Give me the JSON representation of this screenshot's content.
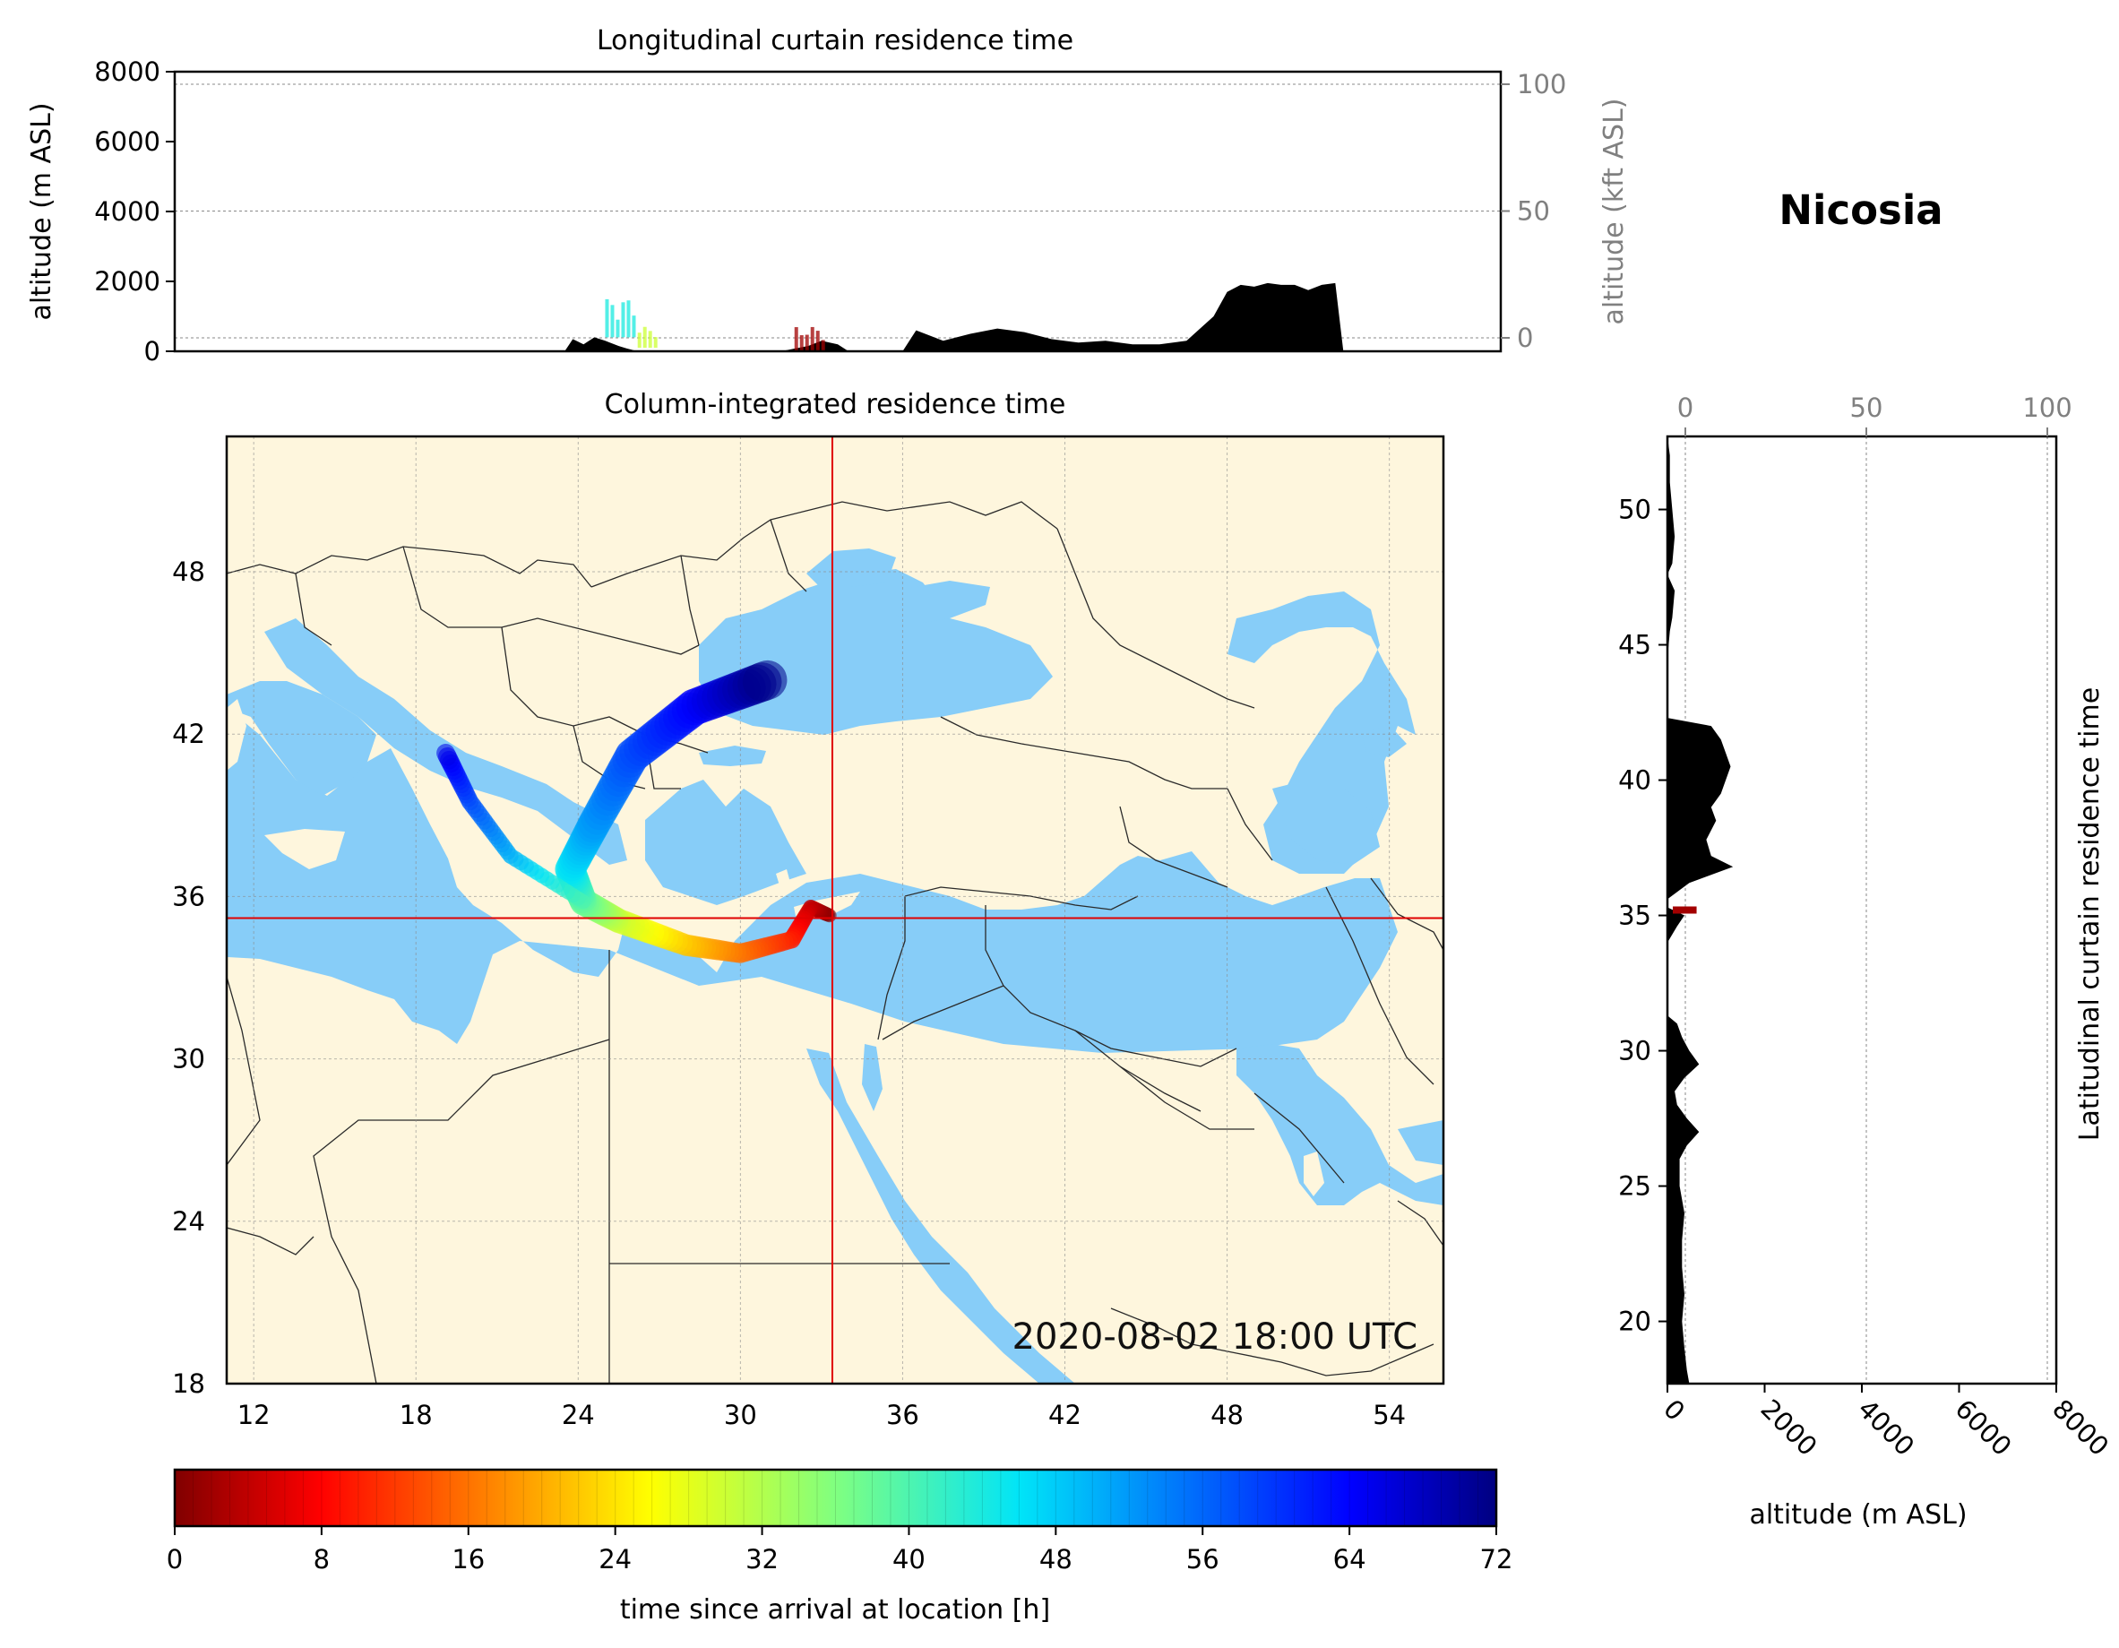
{
  "station": "Nicosia",
  "timestamp": "2020-08-02 18:00 UTC",
  "colors": {
    "land": "#fef6dd",
    "water": "#87cdf8",
    "crosshair": "#e00000",
    "terrain": "#000000"
  },
  "chart_data": [
    {
      "type": "area",
      "id": "longitudinal",
      "title": "Longitudinal curtain residence time",
      "ylabel": "altitude (m ASL)",
      "y2label": "altitude (kft ASL)",
      "ylim": [
        0,
        8000
      ],
      "y2lim": [
        0,
        100
      ],
      "yticks": [
        0,
        2000,
        4000,
        6000,
        8000
      ],
      "y2ticks": [
        0,
        50,
        100
      ],
      "xlim": [
        11,
        55.5
      ],
      "grid": true,
      "terrain_lon": [
        23.5,
        23.8,
        24.2,
        24.6,
        25.0,
        25.5,
        25.8,
        26.2,
        26.6,
        27.0,
        27.5,
        28.0,
        29.0,
        30.0,
        31.0,
        31.5,
        32.5,
        33.0,
        33.6,
        34.0,
        34.4,
        34.9,
        35.2,
        35.6,
        36.0,
        36.5,
        37.5,
        38.5,
        39.5,
        40.5,
        41.5,
        42.5,
        43.5,
        44.5,
        45.5,
        46.5,
        47.0,
        47.5,
        48.0,
        48.5,
        49.0,
        49.5,
        50.0,
        50.5,
        51.0,
        51.5,
        52.0,
        52.3
      ],
      "terrain_alt": [
        0,
        350,
        200,
        400,
        300,
        150,
        80,
        0,
        0,
        0,
        0,
        0,
        0,
        0,
        0,
        0,
        150,
        300,
        200,
        0,
        0,
        0,
        0,
        0,
        0,
        600,
        300,
        500,
        650,
        550,
        350,
        250,
        300,
        200,
        200,
        300,
        650,
        1000,
        1700,
        1900,
        1850,
        1950,
        1900,
        1900,
        1750,
        1900,
        1950,
        0
      ],
      "residence_patches": [
        {
          "lon": [
            25.0,
            26.0
          ],
          "alt": [
            400,
            1500
          ],
          "hours": 44
        },
        {
          "lon": [
            26.2,
            26.8
          ],
          "alt": [
            100,
            700
          ],
          "hours": 30
        },
        {
          "lon": [
            32.0,
            33.1
          ],
          "alt": [
            0,
            700
          ],
          "hours": 2
        }
      ]
    },
    {
      "type": "heatmap",
      "id": "column",
      "title": "Column-integrated residence time",
      "xticks": [
        12,
        18,
        24,
        30,
        36,
        42,
        48,
        54
      ],
      "yticks": [
        18,
        24,
        30,
        36,
        42,
        48
      ],
      "xlim": [
        11,
        56
      ],
      "ylim": [
        18,
        53
      ],
      "grid": true,
      "crosshair": {
        "lon": 33.4,
        "lat": 35.2
      },
      "trajectory": [
        {
          "lon": 33.3,
          "lat": 35.3,
          "hours": 0
        },
        {
          "lon": 32.6,
          "lat": 35.6,
          "hours": 4
        },
        {
          "lon": 31.9,
          "lat": 34.4,
          "hours": 10
        },
        {
          "lon": 30.0,
          "lat": 33.9,
          "hours": 16
        },
        {
          "lon": 28.0,
          "lat": 34.2,
          "hours": 22
        },
        {
          "lon": 25.5,
          "lat": 35.1,
          "hours": 30
        },
        {
          "lon": 24.2,
          "lat": 35.8,
          "hours": 38
        },
        {
          "lon": 23.7,
          "lat": 37.0,
          "hours": 46
        },
        {
          "lon": 24.6,
          "lat": 38.7,
          "hours": 52
        },
        {
          "lon": 26.0,
          "lat": 41.2,
          "hours": 58
        },
        {
          "lon": 28.3,
          "lat": 43.0,
          "hours": 64
        },
        {
          "lon": 31.0,
          "lat": 44.0,
          "hours": 72
        }
      ],
      "trajectory_branch": [
        {
          "lon": 24.2,
          "lat": 35.8,
          "hours": 40
        },
        {
          "lon": 21.5,
          "lat": 37.5,
          "hours": 50
        },
        {
          "lon": 20.0,
          "lat": 39.5,
          "hours": 58
        },
        {
          "lon": 19.1,
          "lat": 41.3,
          "hours": 66
        }
      ]
    },
    {
      "type": "area",
      "id": "latitudinal",
      "title": "Latitudinal curtain residence time",
      "xlabel": "altitude (m ASL)",
      "xlim": [
        0,
        8000
      ],
      "xticks": [
        0,
        2000,
        4000,
        6000,
        8000
      ],
      "x2ticks": [
        0,
        50,
        100
      ],
      "ylim": [
        17.7,
        52.7
      ],
      "yticks": [
        20,
        25,
        30,
        35,
        40,
        45,
        50
      ],
      "grid": true,
      "terrain_lat": [
        17.7,
        18.2,
        19.0,
        20.0,
        21.0,
        22.0,
        23.0,
        24.0,
        25.0,
        26.0,
        26.5,
        27.0,
        27.5,
        28.0,
        28.5,
        29.0,
        29.5,
        30.0,
        30.5,
        31.0,
        31.3,
        34.0,
        34.6,
        35.0,
        35.3,
        35.6,
        36.2,
        36.8,
        37.2,
        37.8,
        38.5,
        39.0,
        39.5,
        40.0,
        40.5,
        41.0,
        41.5,
        42.0,
        42.3,
        44.5,
        45.5,
        46.0,
        47.0,
        47.6,
        48.0,
        49.0,
        50.0,
        51.0,
        52.0,
        52.7
      ],
      "terrain_alt": [
        450,
        400,
        350,
        300,
        350,
        300,
        300,
        350,
        250,
        250,
        400,
        650,
        400,
        200,
        150,
        350,
        650,
        450,
        300,
        200,
        0,
        0,
        200,
        350,
        0,
        0,
        450,
        1350,
        900,
        800,
        1000,
        900,
        1100,
        1200,
        1300,
        1200,
        1100,
        900,
        0,
        0,
        50,
        100,
        150,
        0,
        100,
        150,
        100,
        50,
        50,
        0
      ]
    },
    {
      "type": "colorbar",
      "id": "colorbar",
      "label": "time since arrival at location [h]",
      "range": [
        0,
        72
      ],
      "ticks": [
        0,
        8,
        16,
        24,
        32,
        40,
        48,
        56,
        64,
        72
      ],
      "colormap": "jet_r"
    }
  ]
}
